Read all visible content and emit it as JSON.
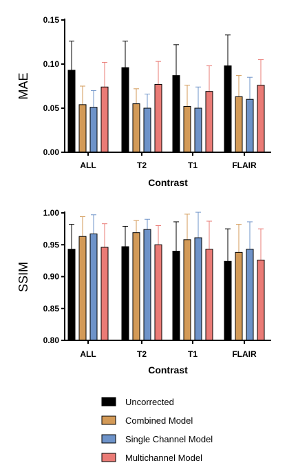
{
  "chart_data": [
    {
      "type": "bar",
      "xlabel": "Contrast",
      "ylabel": "MAE",
      "categories": [
        "ALL",
        "T2",
        "T1",
        "FLAIR"
      ],
      "ylim": [
        0,
        0.15
      ],
      "yticks": [
        "0.00",
        "0.05",
        "0.10",
        "0.15"
      ],
      "series": [
        {
          "name": "Uncorrected",
          "values": [
            0.093,
            0.096,
            0.087,
            0.098
          ],
          "errors": [
            0.033,
            0.03,
            0.035,
            0.035
          ]
        },
        {
          "name": "Combined Model",
          "values": [
            0.054,
            0.055,
            0.052,
            0.063
          ],
          "errors": [
            0.021,
            0.017,
            0.024,
            0.024
          ]
        },
        {
          "name": "Single Channel Model",
          "values": [
            0.051,
            0.05,
            0.05,
            0.06
          ],
          "errors": [
            0.019,
            0.016,
            0.024,
            0.025
          ]
        },
        {
          "name": "Multichannel Model",
          "values": [
            0.074,
            0.077,
            0.069,
            0.076
          ],
          "errors": [
            0.028,
            0.026,
            0.029,
            0.029
          ]
        }
      ]
    },
    {
      "type": "bar",
      "xlabel": "Contrast",
      "ylabel": "SSIM",
      "categories": [
        "ALL",
        "T2",
        "T1",
        "FLAIR"
      ],
      "ylim": [
        0.8,
        1.0
      ],
      "yticks": [
        "0.80",
        "0.85",
        "0.90",
        "0.95",
        "1.00"
      ],
      "series": [
        {
          "name": "Uncorrected",
          "values": [
            0.943,
            0.947,
            0.94,
            0.924
          ],
          "errors": [
            0.039,
            0.032,
            0.046,
            0.051
          ]
        },
        {
          "name": "Combined Model",
          "values": [
            0.963,
            0.969,
            0.958,
            0.938
          ],
          "errors": [
            0.031,
            0.019,
            0.04,
            0.044
          ]
        },
        {
          "name": "Single Channel Model",
          "values": [
            0.967,
            0.974,
            0.961,
            0.943
          ],
          "errors": [
            0.03,
            0.016,
            0.04,
            0.043
          ]
        },
        {
          "name": "Multichannel Model",
          "values": [
            0.946,
            0.95,
            0.943,
            0.926
          ],
          "errors": [
            0.037,
            0.03,
            0.044,
            0.049
          ]
        }
      ]
    }
  ],
  "colors": {
    "Uncorrected": "#000000",
    "Combined Model": "#d39a57",
    "Single Channel Model": "#6e93c9",
    "Multichannel Model": "#ea7b76"
  },
  "legend": {
    "placement": "bottom",
    "items": [
      "Uncorrected",
      "Combined Model",
      "Single Channel Model",
      "Multichannel Model"
    ]
  }
}
